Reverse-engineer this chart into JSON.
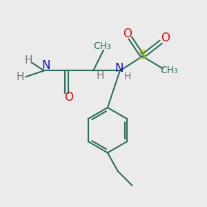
{
  "bg_color": "#ebebeb",
  "bond_color": "#2d6b5a",
  "N_color": "#1111bb",
  "O_color": "#cc1111",
  "S_color": "#bbbb00",
  "C_color": "#2d6b5a",
  "H_color": "#777777",
  "line_width": 1.5,
  "font_size": 11,
  "figsize": [
    3.0,
    3.0
  ],
  "dpi": 100,
  "xlim": [
    0,
    10
  ],
  "ylim": [
    0,
    10
  ]
}
